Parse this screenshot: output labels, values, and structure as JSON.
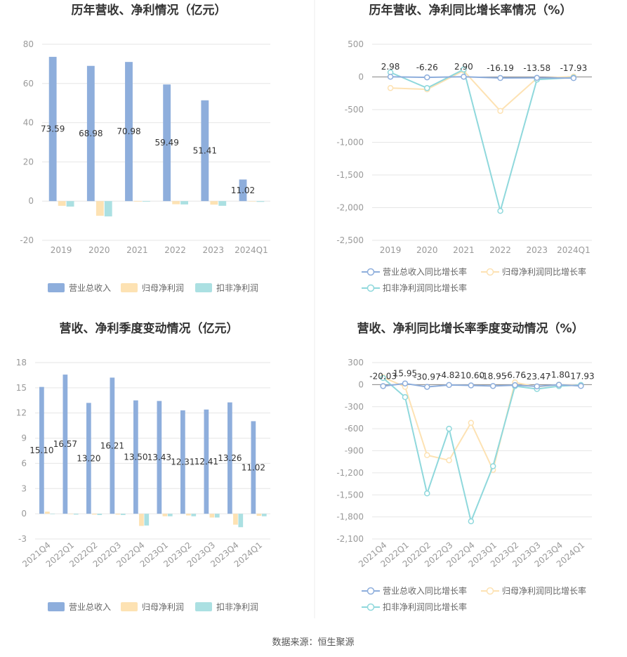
{
  "source_text": "数据来源：恒生聚源",
  "colors": {
    "revenue": "#8eaedc",
    "parent_profit": "#fde2b3",
    "deducted_profit": "#abe0e2",
    "revenue_line": "#8eaedc",
    "parent_line": "#fde2b3",
    "deducted_line": "#8fd8dc",
    "grid": "#e6e6e6",
    "divider": "#eeeeee"
  },
  "chart_data": [
    {
      "id": "annual_bar",
      "type": "bar",
      "title": "历年营收、净利情况（亿元）",
      "categories": [
        "2019",
        "2020",
        "2021",
        "2022",
        "2023",
        "2024Q1"
      ],
      "ylim": [
        -20,
        80
      ],
      "yticks": [
        -20,
        0,
        20,
        40,
        60,
        80
      ],
      "ytick_labels": [
        "-20",
        "0",
        "20",
        "40",
        "60",
        "80"
      ],
      "series": [
        {
          "name": "营业总收入",
          "values": [
            73.59,
            68.98,
            70.98,
            59.49,
            51.41,
            11.02
          ],
          "labels": [
            "73.59",
            "68.98",
            "70.98",
            "59.49",
            "51.41",
            "11.02"
          ]
        },
        {
          "name": "归母净利润",
          "values": [
            -2.4,
            -7.5,
            -0.3,
            -1.6,
            -1.8,
            -0.2
          ]
        },
        {
          "name": "扣非净利润",
          "values": [
            -2.8,
            -7.8,
            -0.3,
            -1.7,
            -2.4,
            -0.4
          ]
        }
      ],
      "legend": "bottom"
    },
    {
      "id": "annual_line",
      "type": "line",
      "title": "历年营收、净利同比增长率情况（%）",
      "categories": [
        "2019",
        "2020",
        "2021",
        "2022",
        "2023",
        "2024Q1"
      ],
      "ylim": [
        -2500,
        500
      ],
      "yticks": [
        -2500,
        -2000,
        -1500,
        -1000,
        -500,
        0,
        500
      ],
      "ytick_labels": [
        "-2,500",
        "-2,000",
        "-1,500",
        "-1,000",
        "-500",
        "0",
        "500"
      ],
      "series": [
        {
          "name": "营业总收入同比增长率",
          "values": [
            2.98,
            -6.26,
            2.9,
            -16.19,
            -13.58,
            -17.93
          ],
          "labels": [
            "2.98",
            "-6.26",
            "2.90",
            "-16.19",
            "-13.58",
            "-17.93"
          ]
        },
        {
          "name": "归母净利润同比增长率",
          "values": [
            -170,
            -190,
            95,
            -520,
            -20,
            5
          ]
        },
        {
          "name": "扣非净利润同比增长率",
          "values": [
            70,
            -170,
            115,
            -2050,
            -40,
            -10
          ]
        }
      ],
      "legend": "bottom"
    },
    {
      "id": "quarter_bar",
      "type": "bar",
      "title": "营收、净利季度变动情况（亿元）",
      "categories": [
        "2021Q4",
        "2022Q1",
        "2022Q2",
        "2022Q3",
        "2022Q4",
        "2023Q1",
        "2023Q2",
        "2023Q3",
        "2023Q4",
        "2024Q1"
      ],
      "ylim": [
        -3,
        18
      ],
      "yticks": [
        -3,
        0,
        3,
        6,
        9,
        12,
        15,
        18
      ],
      "ytick_labels": [
        "-3",
        "0",
        "3",
        "6",
        "9",
        "12",
        "15",
        "18"
      ],
      "series": [
        {
          "name": "营业总收入",
          "values": [
            15.1,
            16.57,
            13.2,
            16.21,
            13.5,
            13.43,
            12.31,
            12.41,
            13.26,
            11.02
          ],
          "labels": [
            "15.10",
            "16.57",
            "13.20",
            "16.21",
            "13.50",
            "13.43",
            "12.31",
            "12.41",
            "13.26",
            "11.02"
          ]
        },
        {
          "name": "归母净利润",
          "values": [
            0.25,
            -0.05,
            -0.1,
            -0.1,
            -1.45,
            -0.3,
            -0.2,
            -0.45,
            -1.3,
            -0.25
          ]
        },
        {
          "name": "扣非净利润",
          "values": [
            -0.05,
            -0.1,
            -0.15,
            -0.15,
            -1.4,
            -0.3,
            -0.3,
            -0.45,
            -1.6,
            -0.3
          ]
        }
      ],
      "legend": "bottom"
    },
    {
      "id": "quarter_line",
      "type": "line",
      "title": "营收、净利同比增长率季度变动情况（%）",
      "categories": [
        "2021Q4",
        "2022Q1",
        "2022Q2",
        "2022Q3",
        "2022Q4",
        "2023Q1",
        "2023Q2",
        "2023Q3",
        "2023Q4",
        "2024Q1"
      ],
      "ylim": [
        -2100,
        300
      ],
      "yticks": [
        -2100,
        -1800,
        -1500,
        -1200,
        -900,
        -600,
        -300,
        0,
        300
      ],
      "ytick_labels": [
        "-2,100",
        "-1,800",
        "-1,500",
        "-1,200",
        "-900",
        "-600",
        "-300",
        "0",
        "300"
      ],
      "series": [
        {
          "name": "营业总收入同比增长率",
          "values": [
            -20.03,
            15.95,
            -30.97,
            -4.82,
            -10.6,
            -18.95,
            -6.76,
            -23.47,
            -1.8,
            -17.93
          ],
          "labels": [
            "-20.03",
            "15.95",
            "-30.97",
            "-4.82",
            "-10.60",
            "-18.95",
            "-6.76",
            "-23.47",
            "-1.80",
            "-17.93"
          ]
        },
        {
          "name": "归母净利润同比增长率",
          "values": [
            100,
            -30,
            -960,
            -1030,
            -520,
            -1160,
            30,
            -30,
            0,
            -10
          ]
        },
        {
          "name": "扣非净利润同比增长率",
          "values": [
            90,
            -170,
            -1480,
            -600,
            -1860,
            -1110,
            -20,
            -60,
            -20,
            -5
          ]
        }
      ],
      "legend": "bottom"
    }
  ]
}
